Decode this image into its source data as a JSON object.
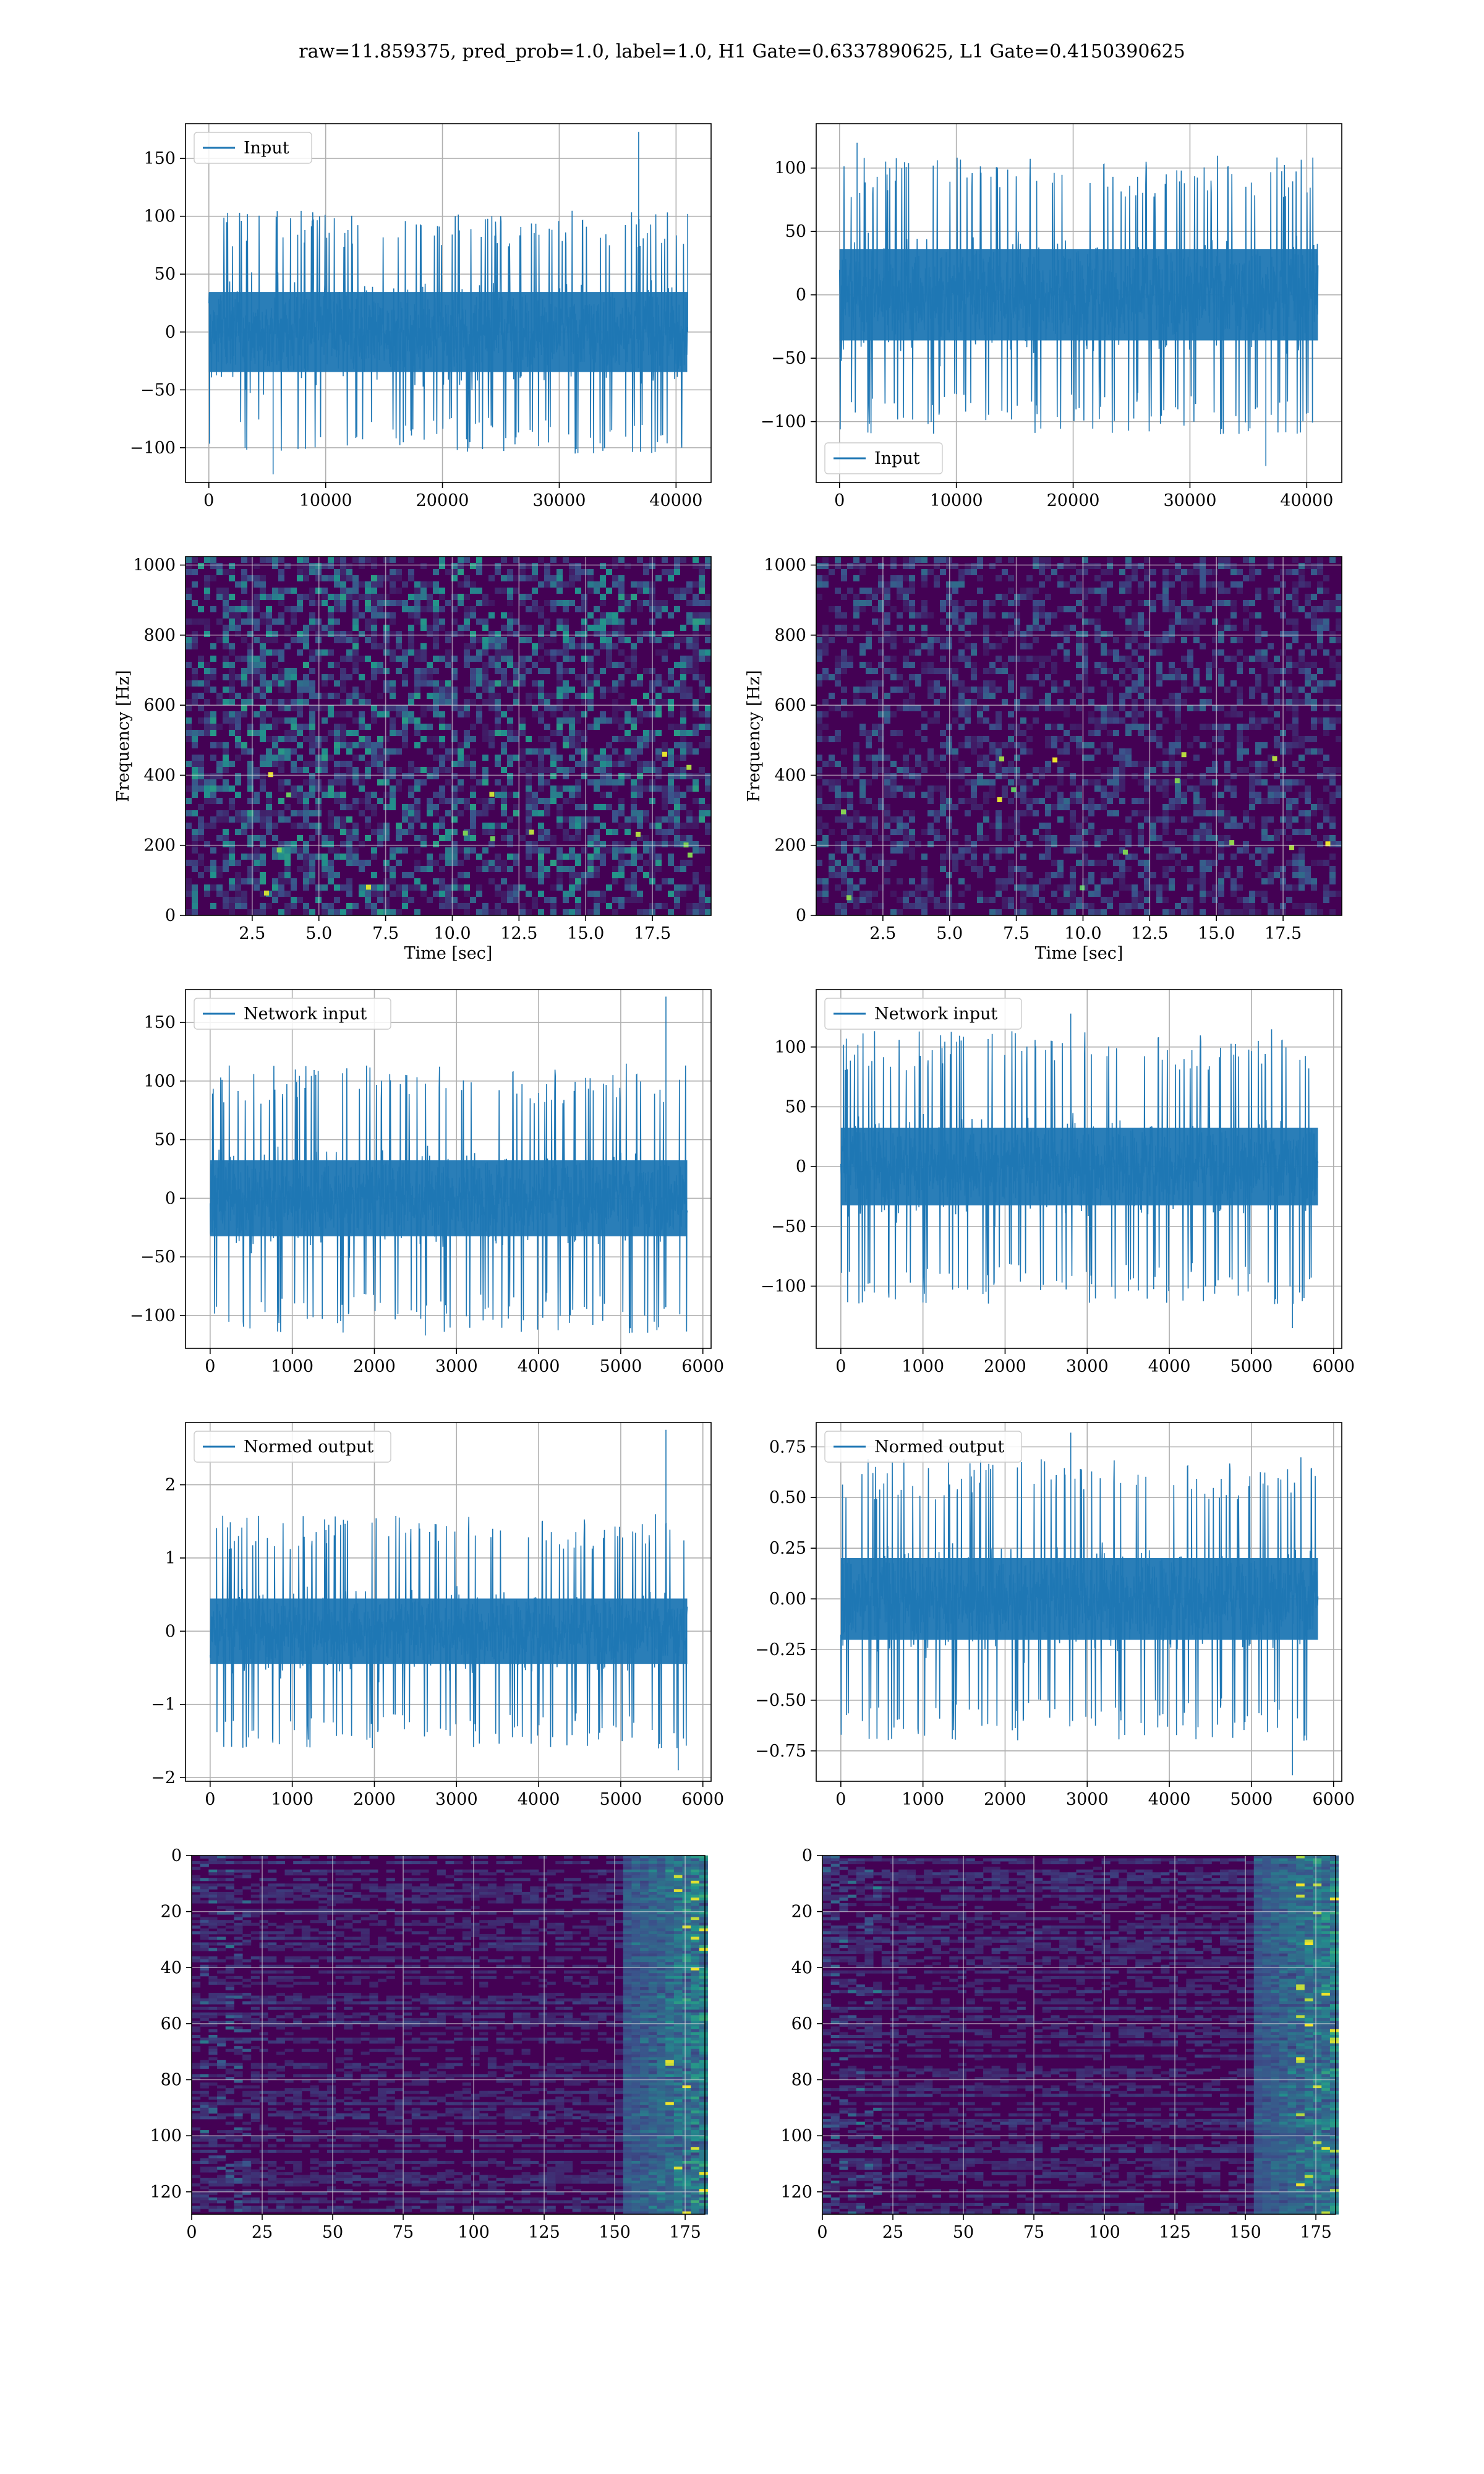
{
  "figure": {
    "title": "raw=11.859375, pred_prob=1.0, label=1.0, H1 Gate=0.6337890625, L1 Gate=0.4150390625"
  },
  "colors": {
    "line": "#1f77b4",
    "grid": "#b0b0b0",
    "heat_low": "#440154",
    "heat_high": "#fde725"
  },
  "chart_data": [
    {
      "id": "h1-input",
      "type": "line",
      "legend": [
        "Input"
      ],
      "legend_loc": "upper left",
      "grid": true,
      "xlim": [
        -2000,
        43000
      ],
      "ylim": [
        -130,
        180
      ],
      "xticks": [
        0,
        10000,
        20000,
        30000,
        40000
      ],
      "yticks": [
        -100,
        -50,
        0,
        50,
        100,
        150
      ],
      "series": [
        {
          "name": "Input",
          "x_range": [
            0,
            40960
          ],
          "band": 48,
          "extreme": 105,
          "spikes": [
            [
              5500,
              -123
            ],
            [
              36800,
              173
            ],
            [
              41000,
              102
            ]
          ]
        }
      ]
    },
    {
      "id": "l1-input",
      "type": "line",
      "legend": [
        "Input"
      ],
      "legend_loc": "lower left",
      "grid": true,
      "xlim": [
        -2000,
        43000
      ],
      "ylim": [
        -148,
        135
      ],
      "xticks": [
        0,
        10000,
        20000,
        30000,
        40000
      ],
      "yticks": [
        -100,
        -50,
        0,
        50,
        100
      ],
      "series": [
        {
          "name": "Input",
          "x_range": [
            0,
            40960
          ],
          "band": 50,
          "extreme": 110,
          "spikes": [
            [
              1500,
              120
            ],
            [
              36500,
              -135
            ]
          ]
        }
      ]
    },
    {
      "id": "h1-spectrogram",
      "type": "heatmap",
      "xlabel": "Time [sec]",
      "ylabel": "Frequency [Hz]",
      "grid": true,
      "xlim": [
        0,
        19.7
      ],
      "ylim": [
        0,
        1024
      ],
      "xticks": [
        2.5,
        5.0,
        7.5,
        10.0,
        12.5,
        15.0,
        17.5
      ],
      "yticks": [
        0,
        200,
        400,
        600,
        800,
        1000
      ],
      "intensity": 0.55
    },
    {
      "id": "l1-spectrogram",
      "type": "heatmap",
      "xlabel": "Time [sec]",
      "ylabel": "Frequency [Hz]",
      "grid": true,
      "xlim": [
        0,
        19.7
      ],
      "ylim": [
        0,
        1024
      ],
      "xticks": [
        2.5,
        5.0,
        7.5,
        10.0,
        12.5,
        15.0,
        17.5
      ],
      "yticks": [
        0,
        200,
        400,
        600,
        800,
        1000
      ],
      "intensity": 0.35
    },
    {
      "id": "h1-network-input",
      "type": "line",
      "legend": [
        "Network input"
      ],
      "legend_loc": "upper left",
      "grid": true,
      "xlim": [
        -300,
        6100
      ],
      "ylim": [
        -128,
        178
      ],
      "xticks": [
        0,
        1000,
        2000,
        3000,
        4000,
        5000,
        6000
      ],
      "yticks": [
        -100,
        -50,
        0,
        50,
        100,
        150
      ],
      "series": [
        {
          "name": "Network input",
          "x_range": [
            0,
            5810
          ],
          "band": 45,
          "extreme": 115,
          "spikes": [
            [
              5550,
              172
            ],
            [
              2620,
              -117
            ]
          ]
        }
      ]
    },
    {
      "id": "l1-network-input",
      "type": "line",
      "legend": [
        "Network input"
      ],
      "legend_loc": "upper left",
      "grid": true,
      "xlim": [
        -300,
        6100
      ],
      "ylim": [
        -152,
        148
      ],
      "xticks": [
        0,
        1000,
        2000,
        3000,
        4000,
        5000,
        6000
      ],
      "yticks": [
        -100,
        -50,
        0,
        50,
        100
      ],
      "series": [
        {
          "name": "Network input",
          "x_range": [
            0,
            5810
          ],
          "band": 45,
          "extreme": 115,
          "spikes": [
            [
              2800,
              128
            ],
            [
              5500,
              -135
            ]
          ]
        }
      ]
    },
    {
      "id": "h1-normed-output",
      "type": "line",
      "legend": [
        "Normed output"
      ],
      "legend_loc": "upper left",
      "grid": true,
      "xlim": [
        -300,
        6100
      ],
      "ylim": [
        -2.05,
        2.85
      ],
      "xticks": [
        0,
        1000,
        2000,
        3000,
        4000,
        5000,
        6000
      ],
      "yticks": [
        -2,
        -1,
        0,
        1,
        2
      ],
      "series": [
        {
          "name": "Normed output",
          "x_range": [
            0,
            5810
          ],
          "band": 0.62,
          "extreme": 1.6,
          "spikes": [
            [
              5550,
              2.75
            ],
            [
              5700,
              -1.9
            ]
          ]
        }
      ]
    },
    {
      "id": "l1-normed-output",
      "type": "line",
      "legend": [
        "Normed output"
      ],
      "legend_loc": "upper left",
      "grid": true,
      "xlim": [
        -300,
        6100
      ],
      "ylim": [
        -0.9,
        0.87
      ],
      "xticks": [
        0,
        1000,
        2000,
        3000,
        4000,
        5000,
        6000
      ],
      "yticks": [
        -0.75,
        -0.5,
        -0.25,
        0.0,
        0.25,
        0.5,
        0.75
      ],
      "ytick_labels": [
        "−0.75",
        "−0.50",
        "−0.25",
        "0.00",
        "0.25",
        "0.50",
        "0.75"
      ],
      "series": [
        {
          "name": "Normed output",
          "x_range": [
            0,
            5810
          ],
          "band": 0.28,
          "extreme": 0.7,
          "spikes": [
            [
              2800,
              0.82
            ],
            [
              5500,
              -0.87
            ]
          ]
        }
      ]
    },
    {
      "id": "h1-feature-map",
      "type": "heatmap",
      "grid": true,
      "y_inverted": true,
      "xlim": [
        0,
        182
      ],
      "ylim": [
        0,
        128
      ],
      "xticks": [
        0,
        25,
        50,
        75,
        100,
        125,
        150,
        175
      ],
      "yticks": [
        0,
        20,
        40,
        60,
        80,
        100,
        120
      ]
    },
    {
      "id": "l1-feature-map",
      "type": "heatmap",
      "grid": true,
      "y_inverted": true,
      "xlim": [
        0,
        182
      ],
      "ylim": [
        0,
        128
      ],
      "xticks": [
        0,
        25,
        50,
        75,
        100,
        125,
        150,
        175
      ],
      "yticks": [
        0,
        20,
        40,
        60,
        80,
        100,
        120
      ]
    }
  ]
}
